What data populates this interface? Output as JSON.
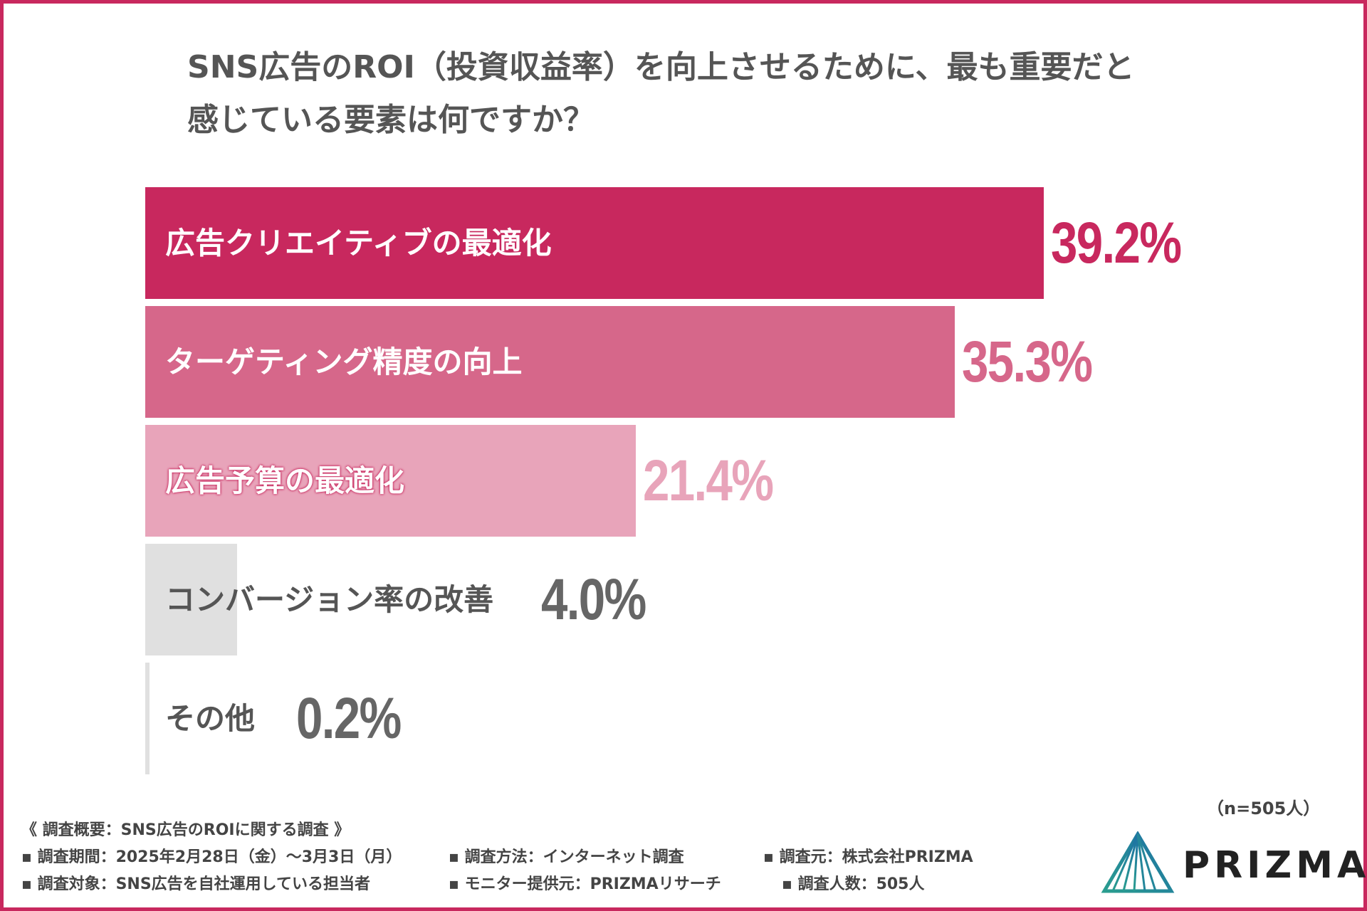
{
  "title": {
    "line1": "SNS広告のROI（投資収益率）を向上させるために、最も重要だと",
    "line2": "感じている要素は何ですか？"
  },
  "chart_data": {
    "type": "bar",
    "orientation": "horizontal",
    "title": "SNS広告のROI（投資収益率）を向上させるために、最も重要だと感じている要素は何ですか？",
    "categories": [
      "広告クリエイティブの最適化",
      "ターゲティング精度の向上",
      "広告予算の最適化",
      "コンバージョン率の改善",
      "その他"
    ],
    "values": [
      39.2,
      35.3,
      21.4,
      4.0,
      0.2
    ],
    "value_labels": [
      "39.2%",
      "35.3%",
      "21.4%",
      "4.0%",
      "0.2%"
    ],
    "colors": [
      "#c8285e",
      "#d6678a",
      "#e8a4ba",
      "#e0e0e0",
      "#e0e0e0"
    ],
    "value_colors": [
      "#c8285e",
      "#d6678a",
      "#e8a4ba",
      "#666666",
      "#666666"
    ],
    "label_colors": [
      "#ffffff",
      "#ffffff",
      "#ffffff",
      "#555555",
      "#555555"
    ],
    "xlim": [
      0,
      100
    ],
    "unit": "%"
  },
  "sample_note": "（n=505人）",
  "footer": {
    "heading": "《 調査概要：SNS広告のROIに関する調査 》",
    "period": "▪ 調査期間：2025年2月28日（金）～3月3日（月）",
    "method": "▪ 調査方法：インターネット調査",
    "organizer": "▪ 調査元：株式会社PRIZMA",
    "target": "▪ 調査対象：SNS広告を自社運用している担当者",
    "monitor": "▪ モニター提供元：PRIZMAリサーチ",
    "respondents": "▪ 調査人数：505人"
  },
  "logo": {
    "text": "PRIZMA",
    "color_a": "#2a9d8f",
    "color_b": "#1d6fa5"
  }
}
